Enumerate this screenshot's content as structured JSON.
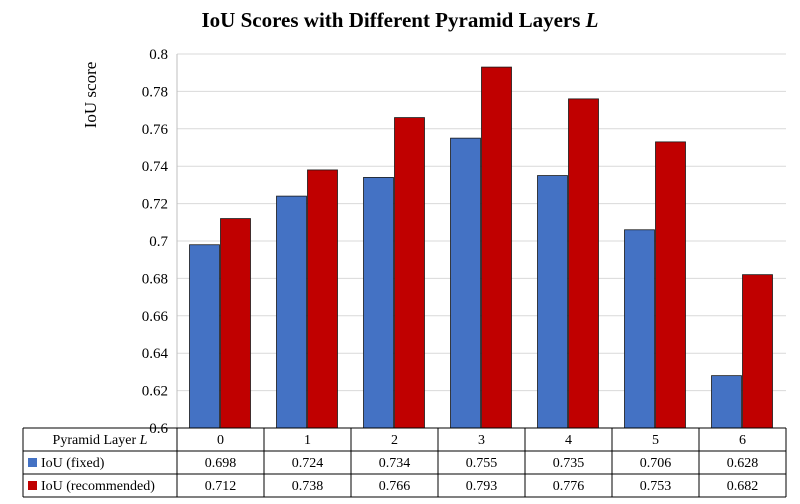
{
  "chart_data": {
    "type": "bar",
    "title": "IoU Scores with Different Pyramid Layers",
    "title_symbol": "L",
    "ylabel": "IoU score",
    "xlabel_row_header": "Pyramid Layer",
    "xlabel_symbol": "L",
    "categories": [
      "0",
      "1",
      "2",
      "3",
      "4",
      "5",
      "6"
    ],
    "ylim": [
      0.6,
      0.8
    ],
    "yticks": [
      "0.6",
      "0.62",
      "0.64",
      "0.66",
      "0.68",
      "0.7",
      "0.72",
      "0.74",
      "0.76",
      "0.78",
      "0.8"
    ],
    "ytick_values": [
      0.6,
      0.62,
      0.64,
      0.66,
      0.68,
      0.7,
      0.72,
      0.74,
      0.76,
      0.78,
      0.8
    ],
    "grid": true,
    "legend": "data-table",
    "series": [
      {
        "name": "IoU (fixed)",
        "color": "#4472C4",
        "values": [
          0.698,
          0.724,
          0.734,
          0.755,
          0.735,
          0.706,
          0.628
        ],
        "labels": [
          "0.698",
          "0.724",
          "0.734",
          "0.755",
          "0.735",
          "0.706",
          "0.628"
        ]
      },
      {
        "name": "IoU (recommended)",
        "color": "#C00000",
        "values": [
          0.712,
          0.738,
          0.766,
          0.793,
          0.776,
          0.753,
          0.682
        ],
        "labels": [
          "0.712",
          "0.738",
          "0.766",
          "0.793",
          "0.776",
          "0.753",
          "0.682"
        ]
      }
    ]
  }
}
